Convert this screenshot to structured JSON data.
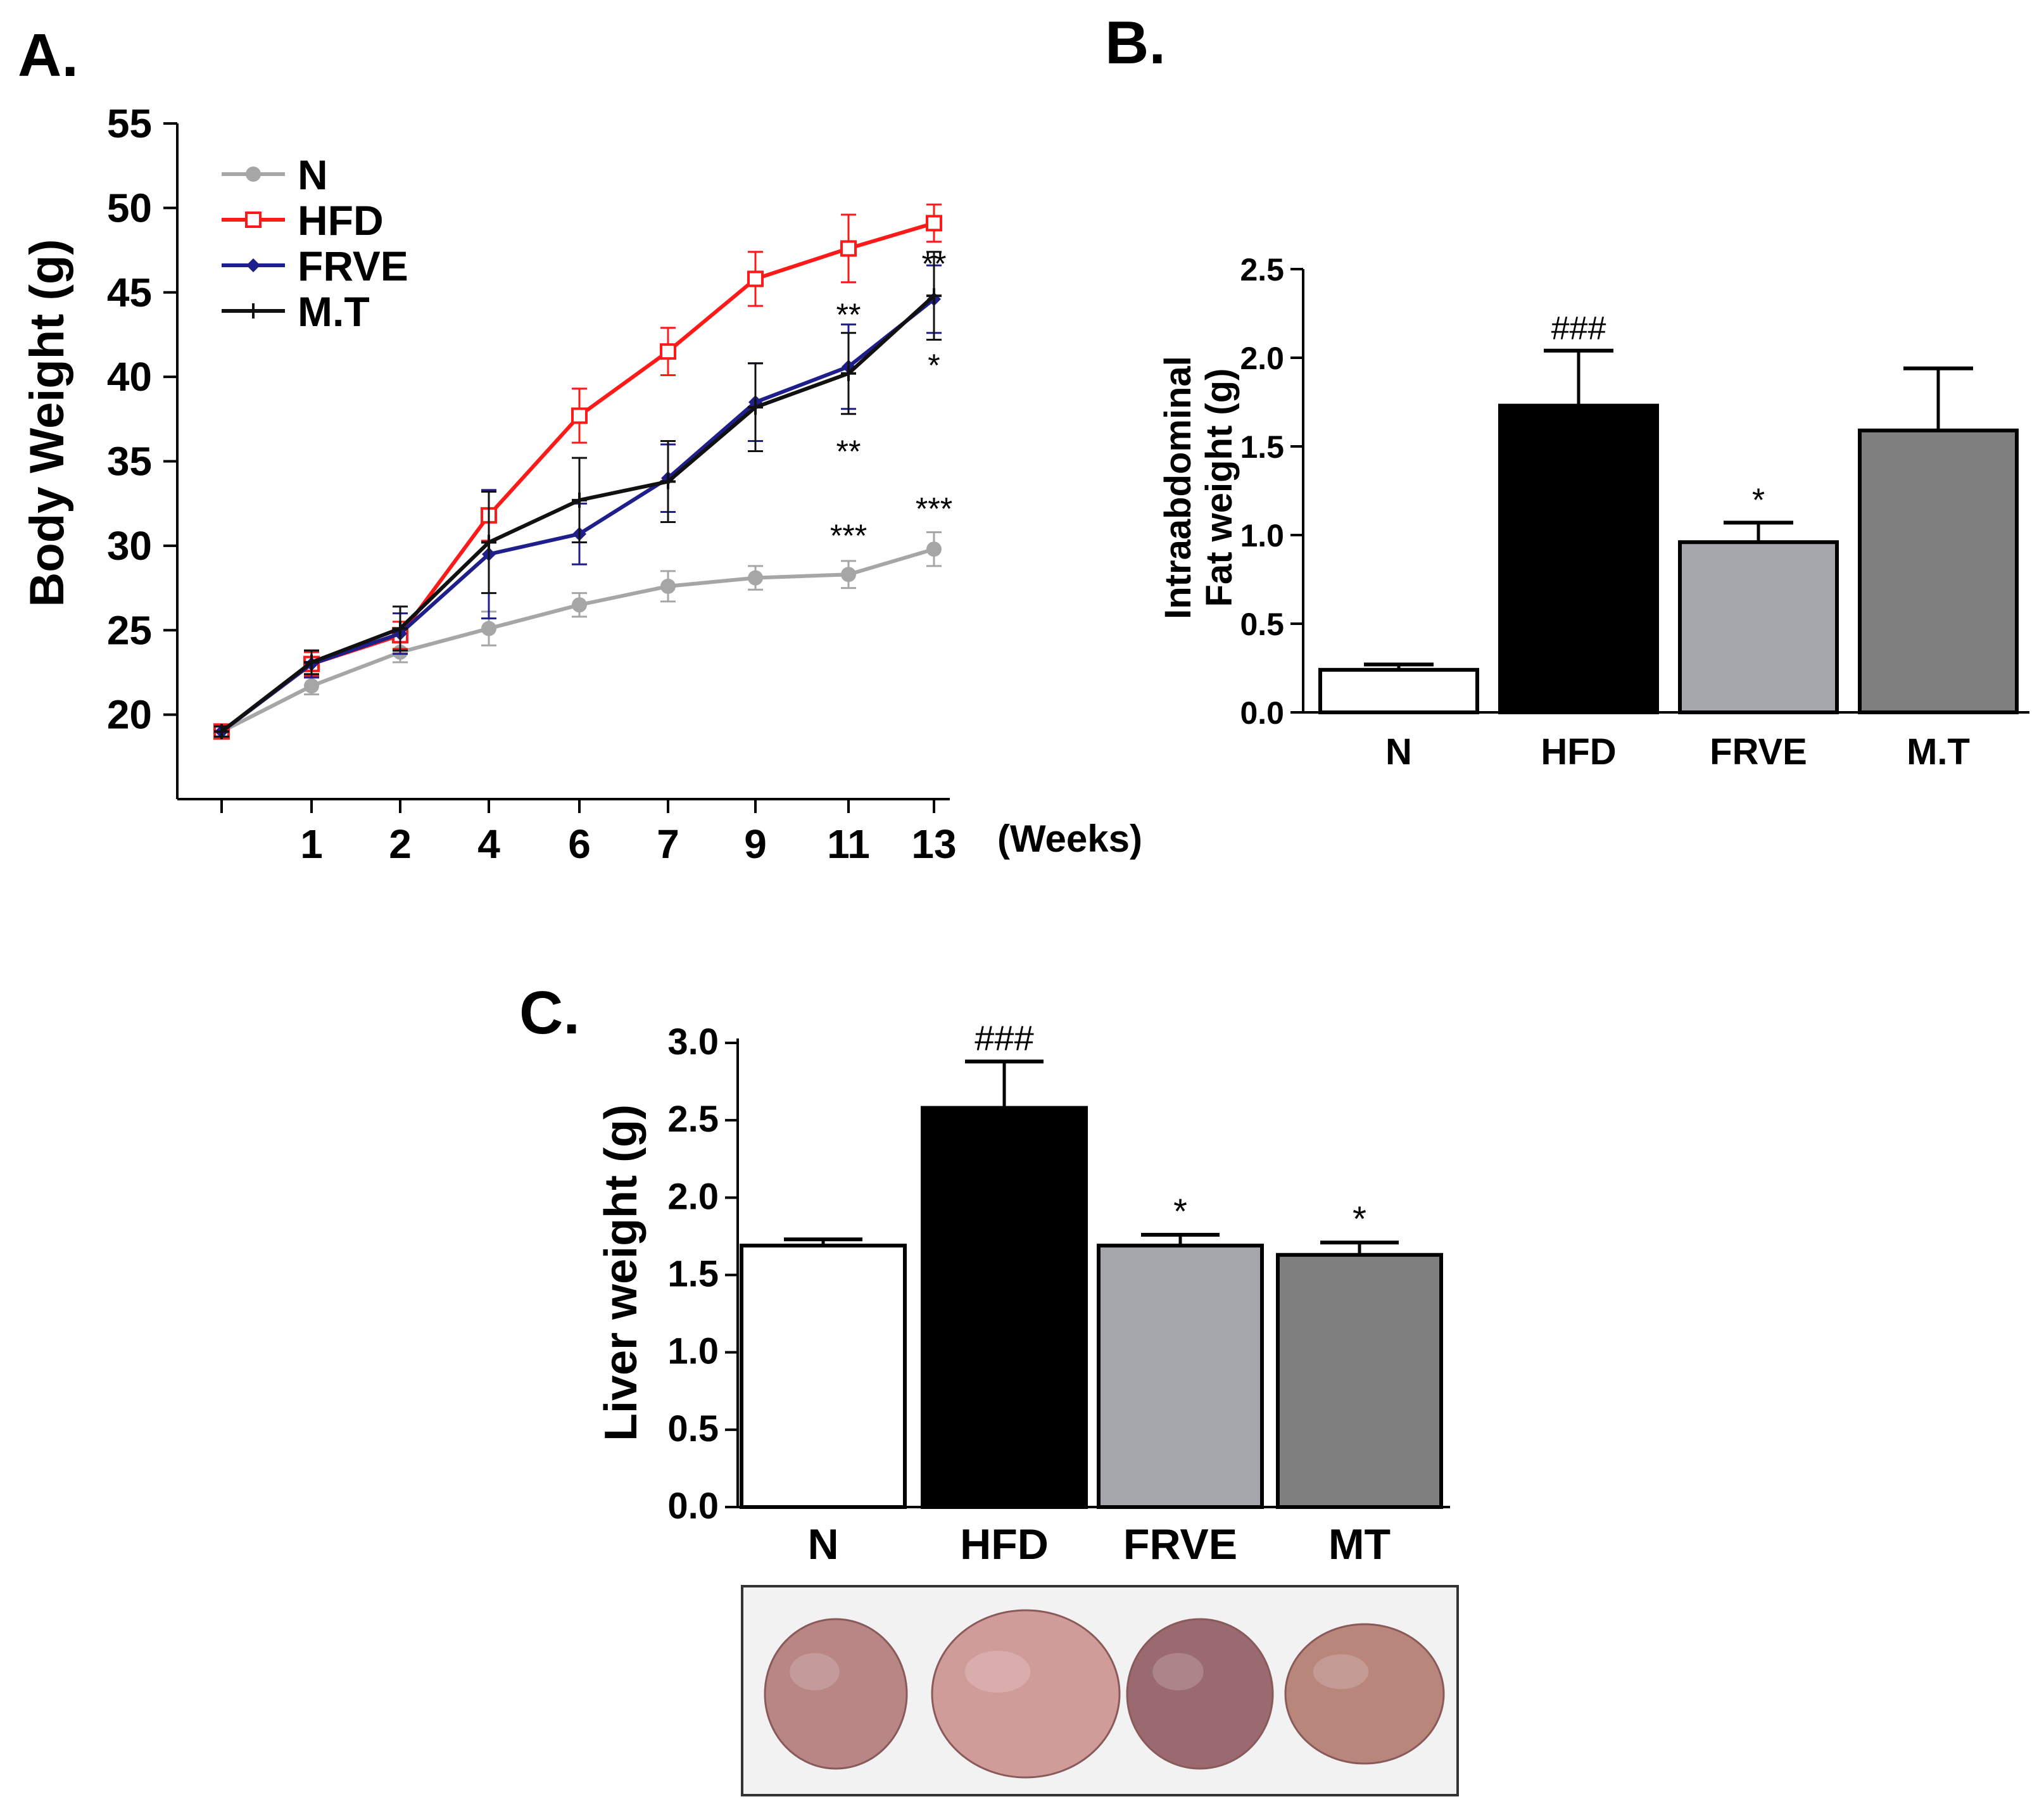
{
  "figure": {
    "panel_a_label": "A.",
    "panel_b_label": "B.",
    "panel_c_label": "C."
  },
  "colors": {
    "N": "#a6a6a6",
    "HFD": "#ff1a1a",
    "FRVE": "#1f1f8c",
    "MT": "#111111",
    "bar_N": "#ffffff",
    "bar_HFD": "#000000",
    "bar_FRVE": "#a6a6ad",
    "bar_MT": "#7f7f7f"
  },
  "chart_data": [
    {
      "id": "A",
      "type": "line",
      "title": "",
      "xlabel": "(Weeks)",
      "ylabel": "Body Weight (g)",
      "ylim": [
        15,
        55
      ],
      "yticks": [
        20,
        25,
        30,
        35,
        40,
        45,
        50,
        55
      ],
      "x": [
        "0",
        "1",
        "2",
        "4",
        "6",
        "7",
        "9",
        "11",
        "13"
      ],
      "xtick_labels": [
        "",
        "1",
        "2",
        "4",
        "6",
        "7",
        "9",
        "11",
        "13"
      ],
      "legend_position": "top-left",
      "series": [
        {
          "name": "N",
          "values": [
            19,
            21.7,
            23.7,
            25.1,
            26.5,
            27.6,
            28.1,
            28.3,
            29.8
          ],
          "errors": [
            0.3,
            0.5,
            0.6,
            1.0,
            0.7,
            0.9,
            0.7,
            0.8,
            1.0
          ]
        },
        {
          "name": "HFD",
          "values": [
            19,
            23,
            24.7,
            31.8,
            37.7,
            41.5,
            45.8,
            47.6,
            49.1
          ],
          "errors": [
            0.3,
            0.7,
            0.8,
            1.5,
            1.6,
            1.4,
            1.6,
            2.0,
            1.1
          ]
        },
        {
          "name": "FRVE",
          "values": [
            19,
            23,
            24.8,
            29.5,
            30.7,
            34,
            38.5,
            40.6,
            44.6
          ],
          "errors": [
            0.3,
            0.8,
            1.2,
            3.8,
            1.8,
            2.0,
            2.3,
            2.5,
            2.0
          ]
        },
        {
          "name": "M.T",
          "values": [
            19,
            23.1,
            25.1,
            30.2,
            32.7,
            33.8,
            38.2,
            40.2,
            44.8
          ],
          "errors": [
            0.3,
            0.7,
            1.3,
            3.0,
            2.5,
            2.4,
            2.6,
            2.4,
            2.6
          ]
        }
      ],
      "annotations": [
        {
          "text": "**",
          "x": "11",
          "y": 43.8
        },
        {
          "text": "**",
          "x": "13",
          "y": 46.8
        },
        {
          "text": "*",
          "x": "13",
          "y": 40.8
        },
        {
          "text": "**",
          "x": "11",
          "y": 35.7
        },
        {
          "text": "***",
          "x": "11",
          "y": 30.7
        },
        {
          "text": "***",
          "x": "13",
          "y": 32.3
        }
      ]
    },
    {
      "id": "B",
      "type": "bar",
      "title": "",
      "xlabel": "",
      "ylabel": "Intraabdominal Fat weight (g)",
      "ylabel_lines": [
        "Intraabdominal",
        "Fat weight (g)"
      ],
      "ylim": [
        0,
        2.5
      ],
      "yticks": [
        "0.0",
        "0.5",
        "1.0",
        "1.5",
        "2.0",
        "2.5"
      ],
      "categories": [
        "N",
        "HFD",
        "FRVE",
        "M.T"
      ],
      "values": [
        0.24,
        1.73,
        0.96,
        1.59
      ],
      "errors": [
        0.03,
        0.31,
        0.11,
        0.35
      ],
      "significance": [
        "",
        "###",
        "*",
        ""
      ]
    },
    {
      "id": "C",
      "type": "bar",
      "title": "",
      "xlabel": "",
      "ylabel": "Liver weight (g)",
      "ylim": [
        0,
        3.0
      ],
      "yticks": [
        "0.0",
        "0.5",
        "1.0",
        "1.5",
        "2.0",
        "2.5",
        "3.0"
      ],
      "categories": [
        "N",
        "HFD",
        "FRVE",
        "MT"
      ],
      "values": [
        1.69,
        2.58,
        1.69,
        1.63
      ],
      "errors": [
        0.04,
        0.3,
        0.07,
        0.08
      ],
      "significance": [
        "",
        "###",
        "*",
        "*"
      ]
    }
  ],
  "liver_photo": {
    "samples": [
      "N",
      "HFD",
      "FRVE",
      "MT"
    ],
    "colors": [
      "#b88684",
      "#d09c9a",
      "#9a6a70",
      "#b8867a"
    ]
  }
}
